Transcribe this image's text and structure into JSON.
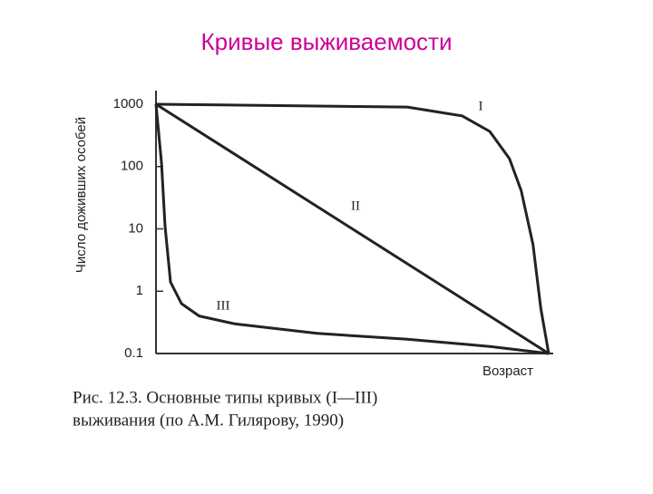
{
  "chart_data": {
    "type": "line",
    "title": "Кривые выживаемости",
    "ylabel": "Число доживших особей",
    "xlabel": "Возраст",
    "caption": [
      "Рис. 12.3. Основные типы кривых (I—III)",
      "выживания (по А.М. Гилярову, 1990)"
    ],
    "log_y": true,
    "xlim": [
      0,
      1
    ],
    "ylim": [
      0.1,
      1000
    ],
    "yticks": [
      1000,
      100,
      10,
      1,
      0.1
    ],
    "series": [
      {
        "name": "I",
        "color": "#222222",
        "x": [
          0,
          0.64,
          0.78,
          0.85,
          0.9,
          0.93,
          0.96,
          0.98,
          1
        ],
        "values": [
          1000,
          900,
          650,
          366,
          134,
          41,
          5.6,
          0.53,
          0.1
        ]
      },
      {
        "name": "II",
        "color": "#222222",
        "x": [
          0,
          1
        ],
        "values": [
          1000,
          0.1
        ]
      },
      {
        "name": "III",
        "color": "#222222",
        "x": [
          0,
          0.014,
          0.023,
          0.037,
          0.065,
          0.11,
          0.2,
          0.41,
          0.64,
          0.85,
          1
        ],
        "values": [
          1000,
          113,
          11,
          1.4,
          0.63,
          0.4,
          0.3,
          0.21,
          0.17,
          0.13,
          0.1
        ]
      }
    ]
  }
}
